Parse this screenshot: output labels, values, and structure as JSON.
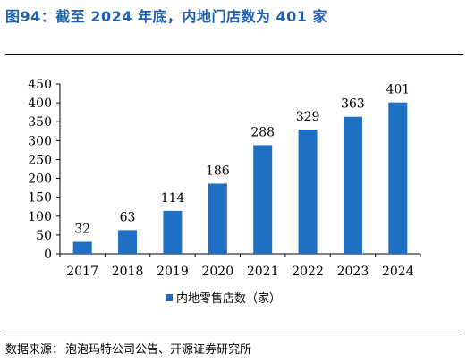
{
  "figure": {
    "title": "图94：截至 2024 年底，内地门店数为 401 家",
    "source_label": "数据来源：",
    "source_text": "泡泡玛特公司公告、开源证券研究所"
  },
  "chart_data": {
    "type": "bar",
    "categories": [
      "2017",
      "2018",
      "2019",
      "2020",
      "2021",
      "2022",
      "2023",
      "2024"
    ],
    "series": [
      {
        "name": "内地零售店数（家）",
        "values": [
          32,
          63,
          114,
          186,
          288,
          329,
          363,
          401
        ],
        "color": "#1f6fc5"
      }
    ],
    "ylim": [
      0,
      450
    ],
    "yticks": [
      0,
      50,
      100,
      150,
      200,
      250,
      300,
      350,
      400,
      450
    ],
    "grid": false,
    "legend": "bottom-center",
    "data_labels": true
  }
}
